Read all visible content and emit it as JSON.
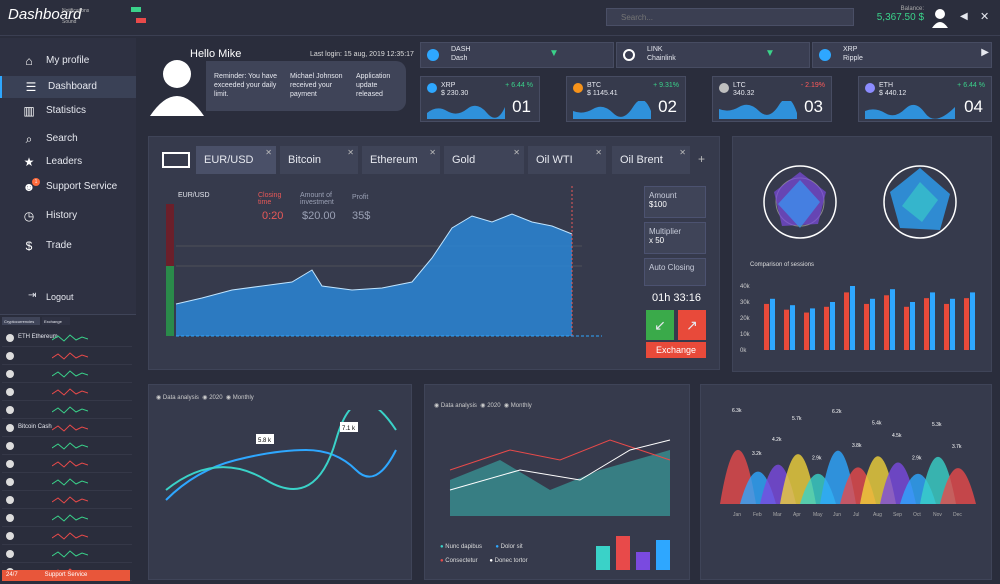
{
  "app": {
    "logo": "Dashboard",
    "notifications_label": "Notifications",
    "sound_label": "Sound"
  },
  "search": {
    "placeholder": "Search..."
  },
  "balance": {
    "label": "Balance:",
    "value": "5,367.50 $"
  },
  "sidebar": {
    "items": [
      {
        "label": "My profile",
        "icon": "user-icon"
      },
      {
        "label": "Dashboard",
        "icon": "list-icon"
      },
      {
        "label": "Statistics",
        "icon": "bar-chart-icon"
      },
      {
        "label": "Search",
        "icon": "search-icon"
      },
      {
        "label": "Leaders",
        "icon": "star-icon"
      },
      {
        "label": "Support Service",
        "icon": "support-icon",
        "badge": "1"
      },
      {
        "label": "History",
        "icon": "clock-icon"
      },
      {
        "label": "Trade",
        "icon": "dollar-icon"
      }
    ],
    "logout": "Logout",
    "support_button": "Support Service",
    "support_badge": "24/7",
    "crypto_tabs": [
      "Cryptocurrencies",
      "Exchange"
    ],
    "crypto_rows": [
      "ETH Ethereum",
      "",
      "",
      "",
      "",
      "Bitcoin Cash",
      "",
      "",
      "",
      "",
      "",
      "",
      "",
      ""
    ]
  },
  "hello": {
    "title": "Hello Mike",
    "last_login": "Last login: 15 aug, 2019 12:35:17",
    "messages": [
      "Reminder: You have exceeded your daily limit.",
      "Michael Johnson received your payment",
      "Application update released"
    ]
  },
  "tickers": [
    {
      "symbol": "DASH",
      "name": "Dash",
      "direction": "down"
    },
    {
      "symbol": "LINK",
      "name": "Chainlink",
      "direction": "down"
    },
    {
      "symbol": "XRP",
      "name": "Ripple",
      "direction": "up"
    }
  ],
  "coins": [
    {
      "name": "XRP",
      "value": "$ 230.30",
      "change": "+ 6.44 %",
      "num": "01",
      "color": "#2ea7ff"
    },
    {
      "name": "BTC",
      "value": "$ 1145.41",
      "change": "+ 9.31%",
      "num": "02",
      "color": "#f7931a"
    },
    {
      "name": "LTC",
      "value": "340.32",
      "change": "- 2.19%",
      "num": "03",
      "color": "#bfbfbf"
    },
    {
      "name": "ETH",
      "value": "$ 440.12",
      "change": "+ 6.44 %",
      "num": "04",
      "color": "#8c8cff"
    }
  ],
  "trade": {
    "tabs": [
      "EUR/USD",
      "Bitcoin",
      "Ethereum",
      "Gold",
      "Oil WTI",
      "Oil Brent"
    ],
    "pair_label": "EUR/USD",
    "closing_time_label": "Closing time",
    "closing_time_value": "0:20",
    "investment_label": "Amount of investment",
    "investment_value": "$20.00",
    "profit_label": "Profit",
    "profit_value": "35$",
    "amount_label": "Amount",
    "amount_value": "$100",
    "multiplier_label": "Multiplier",
    "multiplier_value": "x 50",
    "auto_closing_label": "Auto Closing",
    "timer": "01h 33:16",
    "exchange_button": "Exchange"
  },
  "sessions": {
    "title": "Comparison of sessions",
    "y_ticks": [
      "40k",
      "30k",
      "20k",
      "10k",
      "0k"
    ]
  },
  "analysis1": {
    "title": "Data analysis",
    "year": "2020",
    "period": "Monthly",
    "labels": [
      "5.8 k",
      "7.1 k"
    ]
  },
  "analysis2": {
    "title": "Data analysis",
    "year": "2020",
    "period": "Monthly",
    "legend": [
      "Nunc dapibus",
      "Dolor sit",
      "Consectetur",
      "Donec tortor"
    ]
  },
  "peaks": {
    "labels": [
      "6.3k",
      "3.2k",
      "4.2k",
      "5.7k",
      "2.9k",
      "6.2k",
      "3.8k",
      "5.4k",
      "4.5k",
      "2.9k",
      "5.3k",
      "3.7k"
    ],
    "months": [
      "Jan",
      "Feb",
      "Mar",
      "Apr",
      "May",
      "Jun",
      "Jul",
      "Aug",
      "Sep",
      "Oct",
      "Nov",
      "Dec"
    ]
  }
}
